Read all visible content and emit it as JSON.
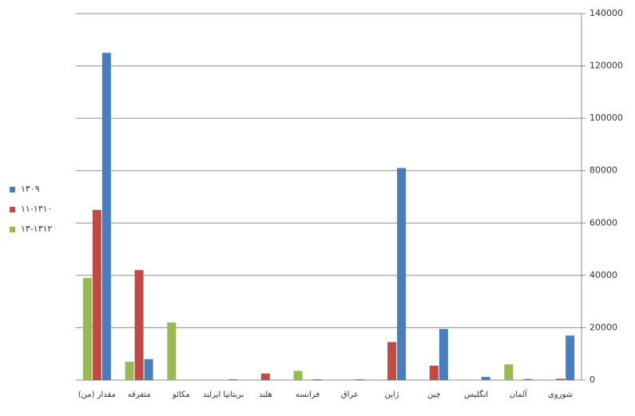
{
  "chart_data": {
    "type": "bar",
    "categories": [
      "مقدار (من)",
      "متفرقه",
      "مکائو",
      "بریتانیا ایرلند",
      "هلند",
      "فرانسه",
      "عراق",
      "ژاپن",
      "چین",
      "انگلیس",
      "آلمان",
      "شوروی"
    ],
    "series": [
      {
        "name": "۱۳۰۹",
        "color": "#4a7ebb",
        "values": [
          125000,
          8000,
          0,
          300,
          0,
          300,
          300,
          81000,
          19500,
          1200,
          400,
          17000
        ]
      },
      {
        "name": "۱۱-۱۳۱۰",
        "color": "#be4b48",
        "values": [
          65000,
          42000,
          0,
          0,
          2500,
          0,
          0,
          14500,
          5500,
          0,
          0,
          500
        ]
      },
      {
        "name": "۱۳-۱۳۱۲",
        "color": "#98b954",
        "values": [
          39000,
          7000,
          22000,
          0,
          0,
          3500,
          0,
          0,
          0,
          0,
          6000,
          0
        ]
      }
    ],
    "ylim": [
      0,
      140000
    ],
    "yticks": [
      0,
      20000,
      40000,
      60000,
      80000,
      100000,
      120000,
      140000
    ],
    "grid": true,
    "axis_side": "right",
    "legend": "left"
  }
}
